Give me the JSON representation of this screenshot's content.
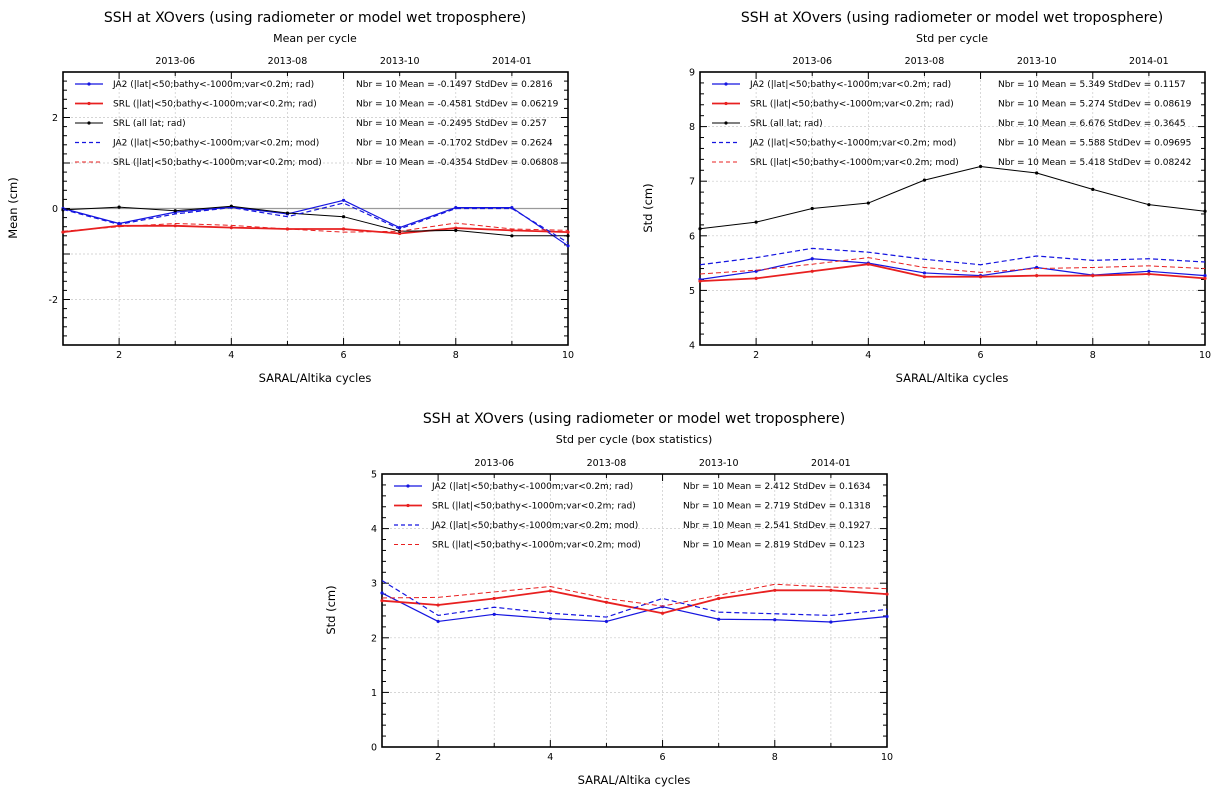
{
  "chart_data": [
    {
      "id": "mean",
      "type": "line",
      "title": "SSH at XOvers (using radiometer or model wet troposphere)",
      "subtitle": "Mean per cycle",
      "xlabel": "SARAL/Altika cycles",
      "ylabel": "Mean  (cm)",
      "xlim": [
        1,
        10
      ],
      "ylim": [
        -3,
        3
      ],
      "xticks": [
        "2",
        "4",
        "6",
        "8",
        "10"
      ],
      "yticks": [
        "-2",
        "0",
        "2"
      ],
      "top_ticks": [
        "2013-06",
        "2013-08",
        "2013-10",
        "2014-01"
      ],
      "zero_line": true,
      "grid": true,
      "legend_position": "top",
      "x": [
        1,
        2,
        3,
        4,
        5,
        6,
        7,
        8,
        9,
        10
      ],
      "series": [
        {
          "name": "JA2 (|lat|<50;bathy<-1000m;var<0.2m; rad)",
          "stats": "Nbr = 10 Mean = -0.1497 StdDev = 0.2816",
          "color": "#1515e0",
          "style": "solid",
          "marker": true,
          "width": 1.2,
          "values": [
            0.0,
            -0.33,
            -0.08,
            0.03,
            -0.12,
            0.18,
            -0.42,
            0.02,
            0.02,
            -0.82
          ]
        },
        {
          "name": "SRL (|lat|<50;bathy<-1000m;var<0.2m; rad)",
          "stats": "Nbr = 10 Mean = -0.4581 StdDev = 0.06219",
          "color": "#e82020",
          "style": "solid",
          "marker": true,
          "width": 1.8,
          "values": [
            -0.52,
            -0.38,
            -0.38,
            -0.42,
            -0.45,
            -0.45,
            -0.55,
            -0.43,
            -0.48,
            -0.52
          ]
        },
        {
          "name": "SRL (all lat; rad)",
          "stats": "Nbr = 10 Mean = -0.2495 StdDev = 0.257",
          "color": "#000000",
          "style": "solid",
          "marker": true,
          "width": 1.0,
          "values": [
            -0.03,
            0.03,
            -0.05,
            0.05,
            -0.1,
            -0.18,
            -0.5,
            -0.48,
            -0.6,
            -0.6
          ]
        },
        {
          "name": "JA2 (|lat|<50;bathy<-1000m;var<0.2m; mod)",
          "stats": "Nbr = 10 Mean = -0.1702 StdDev = 0.2624",
          "color": "#1515e0",
          "style": "dashed",
          "marker": false,
          "width": 1.2,
          "values": [
            -0.02,
            -0.35,
            -0.12,
            0.02,
            -0.18,
            0.12,
            -0.45,
            0.0,
            0.0,
            -0.75
          ]
        },
        {
          "name": "SRL (|lat|<50;bathy<-1000m;var<0.2m; mod)",
          "stats": "Nbr = 10 Mean = -0.4354 StdDev = 0.06808",
          "color": "#e82020",
          "style": "dashed",
          "marker": false,
          "width": 1.0,
          "values": [
            -0.5,
            -0.4,
            -0.33,
            -0.37,
            -0.45,
            -0.52,
            -0.5,
            -0.32,
            -0.45,
            -0.48
          ]
        }
      ]
    },
    {
      "id": "std",
      "type": "line",
      "title": "SSH at XOvers (using radiometer or model wet troposphere)",
      "subtitle": "Std per cycle",
      "xlabel": "SARAL/Altika cycles",
      "ylabel": "Std  (cm)",
      "xlim": [
        1,
        10
      ],
      "ylim": [
        4,
        9
      ],
      "xticks": [
        "2",
        "4",
        "6",
        "8",
        "10"
      ],
      "yticks": [
        "4",
        "5",
        "6",
        "7",
        "8",
        "9"
      ],
      "top_ticks": [
        "2013-06",
        "2013-08",
        "2013-10",
        "2014-01"
      ],
      "zero_line": false,
      "grid": true,
      "legend_position": "top",
      "x": [
        1,
        2,
        3,
        4,
        5,
        6,
        7,
        8,
        9,
        10
      ],
      "series": [
        {
          "name": "JA2 (|lat|<50;bathy<-1000m;var<0.2m; rad)",
          "stats": "Nbr = 10 Mean = 5.349 StdDev = 0.1157",
          "color": "#1515e0",
          "style": "solid",
          "marker": true,
          "width": 1.2,
          "values": [
            5.2,
            5.35,
            5.58,
            5.5,
            5.32,
            5.27,
            5.42,
            5.28,
            5.35,
            5.27
          ]
        },
        {
          "name": "SRL (|lat|<50;bathy<-1000m;var<0.2m; rad)",
          "stats": "Nbr = 10 Mean = 5.274 StdDev = 0.08619",
          "color": "#e82020",
          "style": "solid",
          "marker": true,
          "width": 1.8,
          "values": [
            5.17,
            5.22,
            5.35,
            5.48,
            5.25,
            5.25,
            5.27,
            5.27,
            5.3,
            5.22
          ]
        },
        {
          "name": "SRL (all lat; rad)",
          "stats": "Nbr = 10 Mean = 6.676 StdDev = 0.3645",
          "color": "#000000",
          "style": "solid",
          "marker": true,
          "width": 1.0,
          "values": [
            6.13,
            6.25,
            6.5,
            6.6,
            7.02,
            7.27,
            7.15,
            6.85,
            6.57,
            6.45
          ]
        },
        {
          "name": "JA2 (|lat|<50;bathy<-1000m;var<0.2m; mod)",
          "stats": "Nbr = 10 Mean = 5.588 StdDev = 0.09695",
          "color": "#1515e0",
          "style": "dashed",
          "marker": false,
          "width": 1.2,
          "values": [
            5.47,
            5.6,
            5.77,
            5.7,
            5.57,
            5.47,
            5.63,
            5.55,
            5.58,
            5.52
          ]
        },
        {
          "name": "SRL (|lat|<50;bathy<-1000m;var<0.2m; mod)",
          "stats": "Nbr = 10 Mean = 5.418 StdDev = 0.08242",
          "color": "#e82020",
          "style": "dashed",
          "marker": false,
          "width": 1.0,
          "values": [
            5.3,
            5.37,
            5.48,
            5.6,
            5.42,
            5.33,
            5.4,
            5.42,
            5.45,
            5.4
          ]
        }
      ]
    },
    {
      "id": "box",
      "type": "line",
      "title": "SSH at XOvers (using radiometer or model wet troposphere)",
      "subtitle": "Std per cycle (box statistics)",
      "xlabel": "SARAL/Altika cycles",
      "ylabel": "Std  (cm)",
      "xlim": [
        1,
        10
      ],
      "ylim": [
        0,
        5
      ],
      "xticks": [
        "2",
        "4",
        "6",
        "8",
        "10"
      ],
      "yticks": [
        "0",
        "1",
        "2",
        "3",
        "4",
        "5"
      ],
      "top_ticks": [
        "2013-06",
        "2013-08",
        "2013-10",
        "2014-01"
      ],
      "zero_line": false,
      "grid": true,
      "legend_position": "top",
      "x": [
        1,
        2,
        3,
        4,
        5,
        6,
        7,
        8,
        9,
        10
      ],
      "series": [
        {
          "name": "JA2 (|lat|<50;bathy<-1000m;var<0.2m; rad)",
          "stats": "Nbr = 10 Mean = 2.412 StdDev = 0.1634",
          "color": "#1515e0",
          "style": "solid",
          "marker": true,
          "width": 1.2,
          "values": [
            2.82,
            2.3,
            2.43,
            2.35,
            2.3,
            2.57,
            2.34,
            2.33,
            2.29,
            2.39
          ]
        },
        {
          "name": "SRL (|lat|<50;bathy<-1000m;var<0.2m; rad)",
          "stats": "Nbr = 10 Mean = 2.719 StdDev = 0.1318",
          "color": "#e82020",
          "style": "solid",
          "marker": true,
          "width": 1.8,
          "values": [
            2.68,
            2.6,
            2.72,
            2.86,
            2.65,
            2.45,
            2.72,
            2.87,
            2.87,
            2.8
          ]
        },
        {
          "name": "JA2 (|lat|<50;bathy<-1000m;var<0.2m; mod)",
          "stats": "Nbr = 10 Mean = 2.541 StdDev = 0.1927",
          "color": "#1515e0",
          "style": "dashed",
          "marker": false,
          "width": 1.2,
          "values": [
            3.05,
            2.41,
            2.56,
            2.45,
            2.38,
            2.72,
            2.47,
            2.44,
            2.41,
            2.52
          ]
        },
        {
          "name": "SRL (|lat|<50;bathy<-1000m;var<0.2m; mod)",
          "stats": "Nbr = 10 Mean = 2.819 StdDev = 0.123",
          "color": "#e82020",
          "style": "dashed",
          "marker": false,
          "width": 1.0,
          "values": [
            2.73,
            2.74,
            2.84,
            2.94,
            2.72,
            2.58,
            2.78,
            2.98,
            2.93,
            2.9
          ]
        }
      ]
    }
  ]
}
